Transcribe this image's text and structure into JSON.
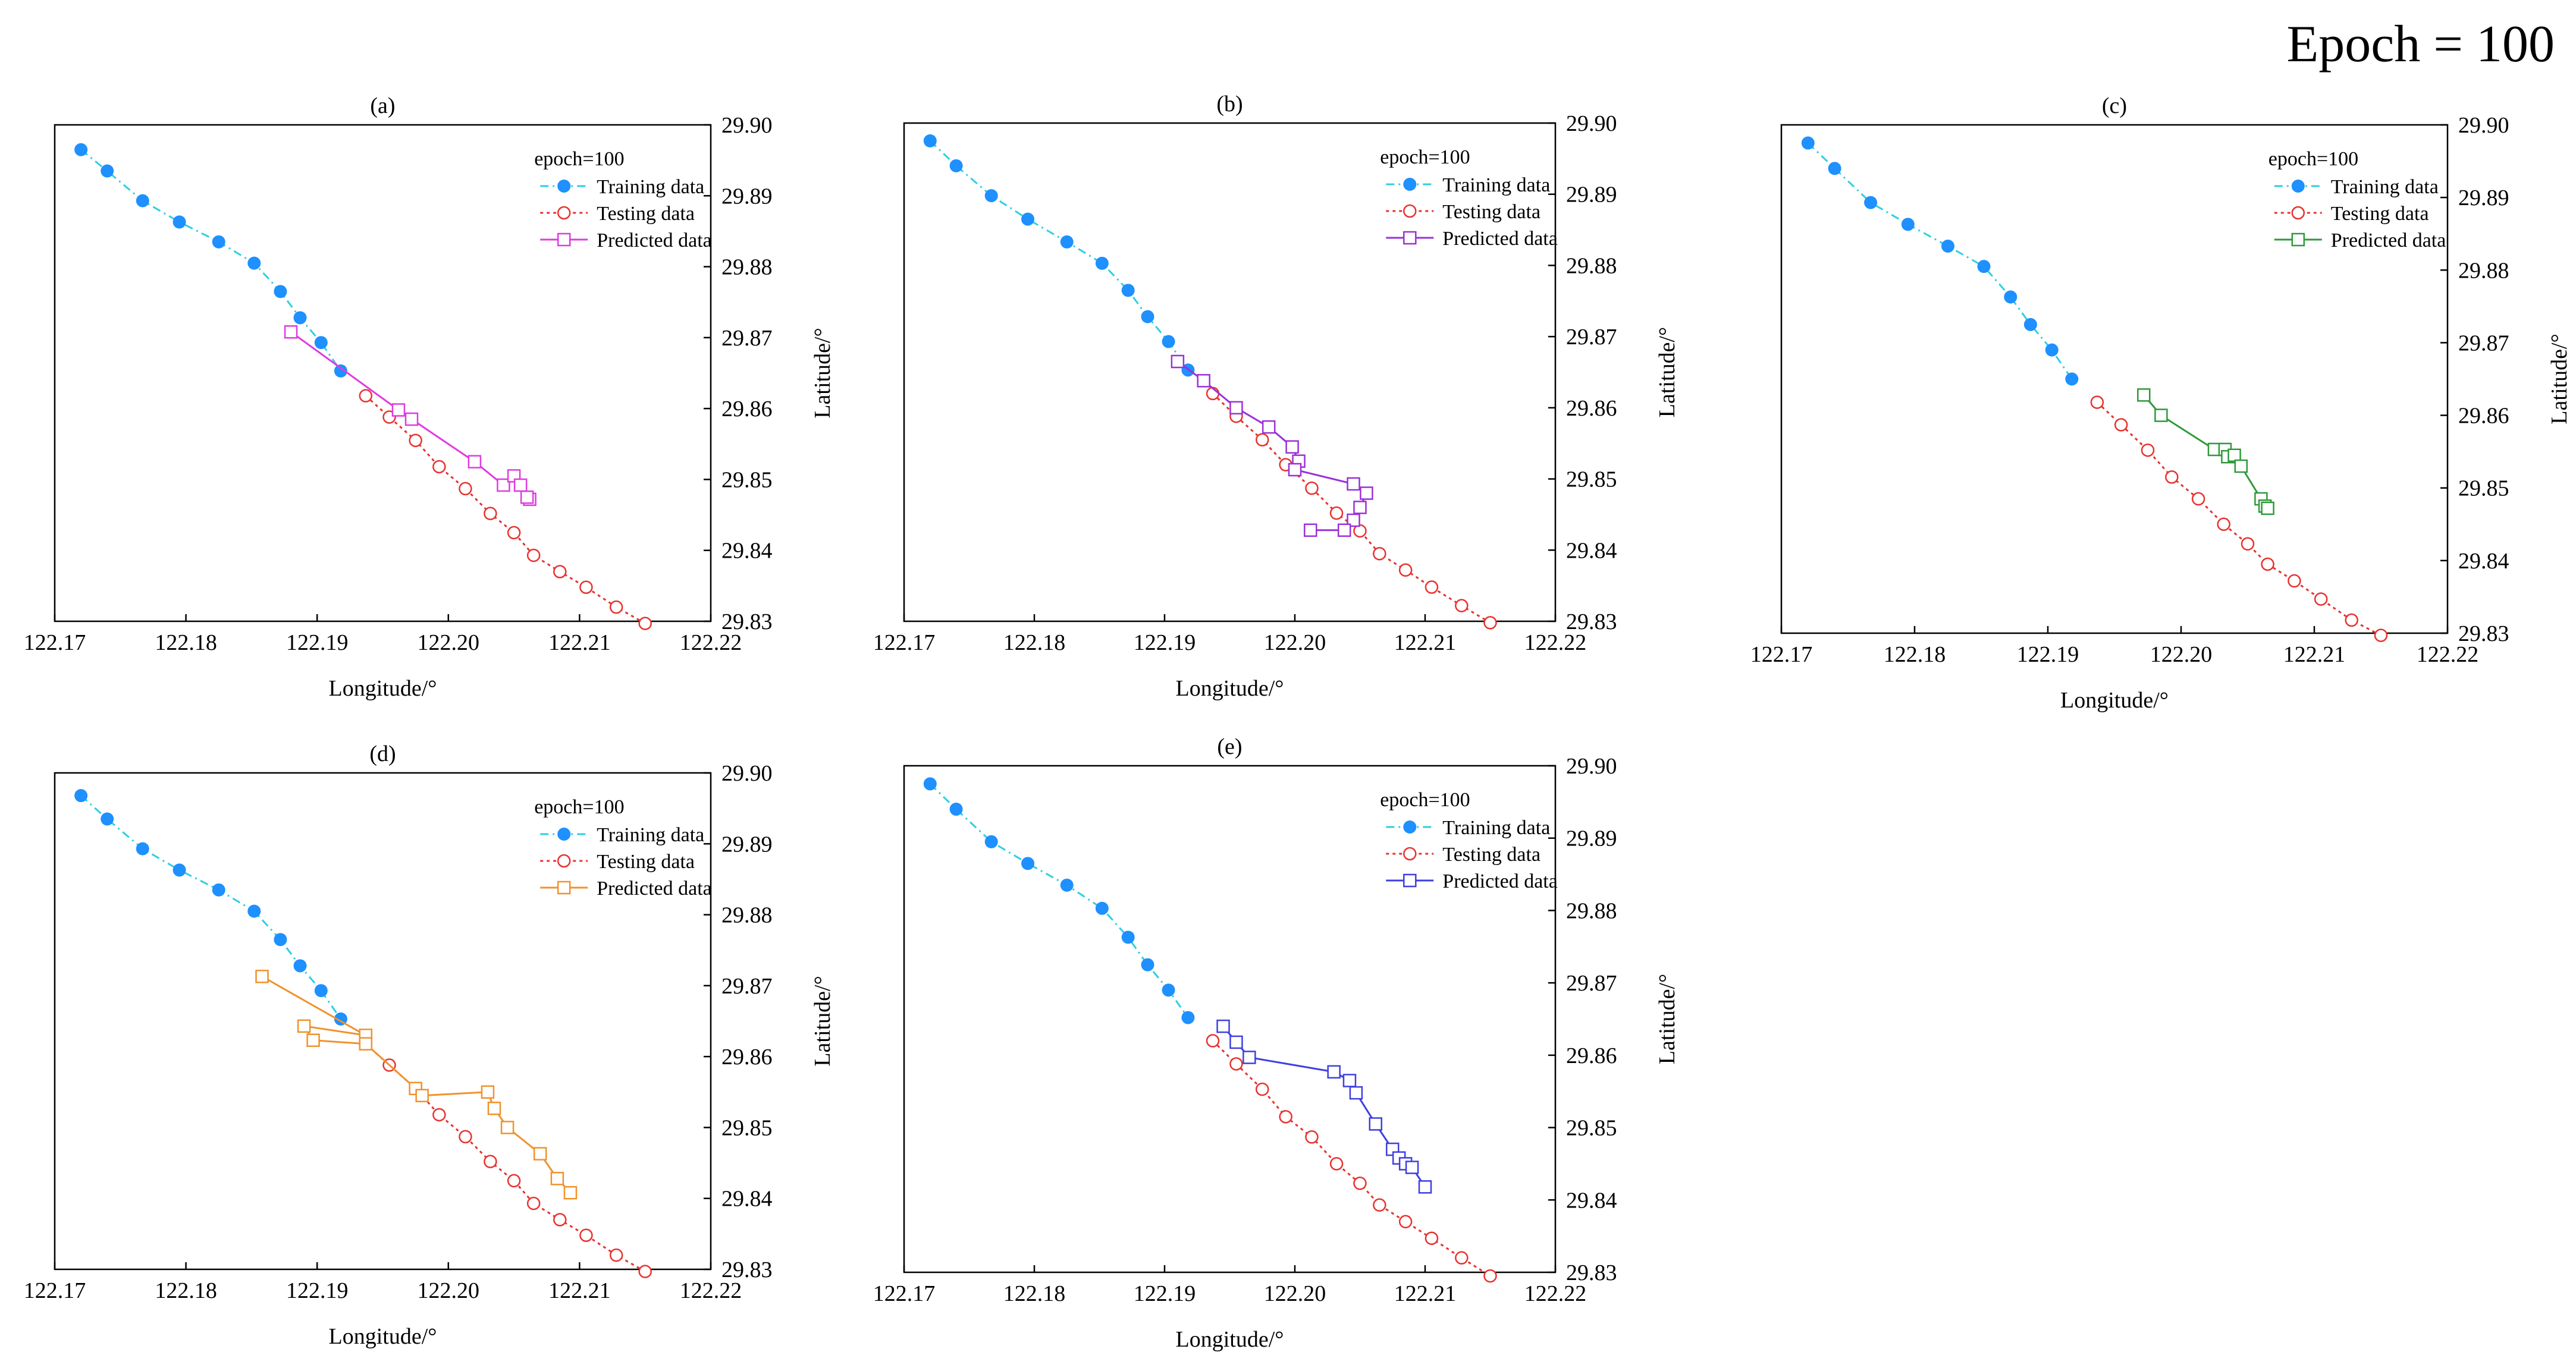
{
  "figure_title": "Epoch = 100",
  "colors": {
    "training": "#1e90ff",
    "training_line": "#2ecfe0",
    "testing": "#e8322f",
    "axis": "#000000"
  },
  "chart_data": [
    {
      "type": "line",
      "panel_label": "(a)",
      "xlabel": "Longitude/°",
      "ylabel": "Latitude/°",
      "xlim": [
        122.17,
        122.22
      ],
      "ylim": [
        29.83,
        29.9
      ],
      "xticks": [
        "122.17",
        "122.18",
        "122.19",
        "122.20",
        "122.21",
        "122.22"
      ],
      "yticks": [
        "29.83",
        "29.84",
        "29.85",
        "29.86",
        "29.87",
        "29.88",
        "29.89",
        "29.90"
      ],
      "legend_title": "epoch=100",
      "legend_position": "top-right",
      "series": [
        {
          "name": "Training data",
          "style": "dash-dot-filled",
          "color": "#1e90ff",
          "x": [
            122.172,
            122.174,
            122.1767,
            122.1795,
            122.1825,
            122.1852,
            122.1872,
            122.1887,
            122.1903,
            122.1918
          ],
          "y": [
            29.8965,
            29.8935,
            29.8893,
            29.8863,
            29.8835,
            29.8805,
            29.8765,
            29.8728,
            29.8693,
            29.8653
          ]
        },
        {
          "name": "Testing data",
          "style": "dotted-open-circle",
          "color": "#e8322f",
          "x": [
            122.1937,
            122.1955,
            122.1975,
            122.1993,
            122.2013,
            122.2032,
            122.205,
            122.2065,
            122.2085,
            122.2105,
            122.2128,
            122.215
          ],
          "y": [
            29.8618,
            29.8588,
            29.8555,
            29.8518,
            29.8487,
            29.8452,
            29.8425,
            29.8393,
            29.837,
            29.8348,
            29.832,
            29.8297
          ]
        },
        {
          "name": "Predicted data",
          "style": "solid-open-square",
          "color": "#e03be0",
          "x": [
            122.188,
            122.1962,
            122.1972,
            122.202,
            122.2042,
            122.205,
            122.2055,
            122.2062,
            122.206
          ],
          "y": [
            29.8708,
            29.8598,
            29.8585,
            29.8525,
            29.8492,
            29.8505,
            29.8492,
            29.8472,
            29.8475
          ]
        }
      ]
    },
    {
      "type": "line",
      "panel_label": "(b)",
      "xlabel": "Longitude/°",
      "ylabel": "Latitude/°",
      "xlim": [
        122.17,
        122.22
      ],
      "ylim": [
        29.83,
        29.9
      ],
      "xticks": [
        "122.17",
        "122.18",
        "122.19",
        "122.20",
        "122.21",
        "122.22"
      ],
      "yticks": [
        "29.83",
        "29.84",
        "29.85",
        "29.86",
        "29.87",
        "29.88",
        "29.89",
        "29.90"
      ],
      "legend_title": "epoch=100",
      "legend_position": "top-right",
      "series": [
        {
          "name": "Training data",
          "style": "dash-dot-filled",
          "color": "#1e90ff",
          "x": [
            122.172,
            122.174,
            122.1767,
            122.1795,
            122.1825,
            122.1852,
            122.1872,
            122.1887,
            122.1903,
            122.1918
          ],
          "y": [
            29.8975,
            29.894,
            29.8898,
            29.8865,
            29.8833,
            29.8803,
            29.8765,
            29.8728,
            29.8693,
            29.8653
          ]
        },
        {
          "name": "Testing data",
          "style": "dotted-open-circle",
          "color": "#e8322f",
          "x": [
            122.1937,
            122.1955,
            122.1975,
            122.1993,
            122.2013,
            122.2032,
            122.205,
            122.2065,
            122.2085,
            122.2105,
            122.2128,
            122.215
          ],
          "y": [
            29.862,
            29.8588,
            29.8555,
            29.852,
            29.8487,
            29.8452,
            29.8427,
            29.8395,
            29.8372,
            29.8348,
            29.8322,
            29.8298
          ]
        },
        {
          "name": "Predicted data",
          "style": "solid-open-square",
          "color": "#9b30d8",
          "x": [
            122.191,
            122.193,
            122.1955,
            122.198,
            122.1998,
            122.2003,
            122.2,
            122.2045,
            122.2055,
            122.205,
            122.2045,
            122.2038,
            122.2012
          ],
          "y": [
            29.8665,
            29.8638,
            29.86,
            29.8573,
            29.8545,
            29.8525,
            29.8513,
            29.8493,
            29.848,
            29.846,
            29.8442,
            29.8428,
            29.8428
          ]
        }
      ]
    },
    {
      "type": "line",
      "panel_label": "(c)",
      "xlabel": "Longitude/°",
      "ylabel": "Latitude/°",
      "xlim": [
        122.17,
        122.22
      ],
      "ylim": [
        29.83,
        29.9
      ],
      "xticks": [
        "122.17",
        "122.18",
        "122.19",
        "122.20",
        "122.21",
        "122.22"
      ],
      "yticks": [
        "29.83",
        "29.84",
        "29.85",
        "29.86",
        "29.87",
        "29.88",
        "29.89",
        "29.90"
      ],
      "legend_title": "epoch=100",
      "legend_position": "top-right",
      "series": [
        {
          "name": "Training data",
          "style": "dash-dot-filled",
          "color": "#1e90ff",
          "x": [
            122.172,
            122.174,
            122.1767,
            122.1795,
            122.1825,
            122.1852,
            122.1872,
            122.1887,
            122.1903,
            122.1918
          ],
          "y": [
            29.8975,
            29.894,
            29.8893,
            29.8863,
            29.8833,
            29.8805,
            29.8763,
            29.8725,
            29.869,
            29.865
          ]
        },
        {
          "name": "Testing data",
          "style": "dotted-open-circle",
          "color": "#e8322f",
          "x": [
            122.1937,
            122.1955,
            122.1975,
            122.1993,
            122.2013,
            122.2032,
            122.205,
            122.2065,
            122.2085,
            122.2105,
            122.2128,
            122.215
          ],
          "y": [
            29.8618,
            29.8587,
            29.8552,
            29.8515,
            29.8485,
            29.845,
            29.8423,
            29.8395,
            29.8372,
            29.8347,
            29.8318,
            29.8297
          ]
        },
        {
          "name": "Predicted data",
          "style": "solid-open-square",
          "color": "#2e9a3a",
          "x": [
            122.1972,
            122.1985,
            122.2025,
            122.2033,
            122.2035,
            122.204,
            122.2045,
            122.206,
            122.2063,
            122.2065
          ],
          "y": [
            29.8628,
            29.86,
            29.8553,
            29.8553,
            29.8543,
            29.8545,
            29.853,
            29.8485,
            29.8475,
            29.8472
          ]
        }
      ]
    },
    {
      "type": "line",
      "panel_label": "(d)",
      "xlabel": "Longitude/°",
      "ylabel": "Latitude/°",
      "xlim": [
        122.17,
        122.22
      ],
      "ylim": [
        29.83,
        29.9
      ],
      "xticks": [
        "122.17",
        "122.18",
        "122.19",
        "122.20",
        "122.21",
        "122.22"
      ],
      "yticks": [
        "29.83",
        "29.84",
        "29.85",
        "29.86",
        "29.87",
        "29.88",
        "29.89",
        "29.90"
      ],
      "legend_title": "epoch=100",
      "legend_position": "top-right",
      "series": [
        {
          "name": "Training data",
          "style": "dash-dot-filled",
          "color": "#1e90ff",
          "x": [
            122.172,
            122.174,
            122.1767,
            122.1795,
            122.1825,
            122.1852,
            122.1872,
            122.1887,
            122.1903,
            122.1918
          ],
          "y": [
            29.8968,
            29.8935,
            29.8893,
            29.8863,
            29.8835,
            29.8805,
            29.8765,
            29.8728,
            29.8693,
            29.8653
          ]
        },
        {
          "name": "Testing data",
          "style": "dotted-open-circle",
          "color": "#e8322f",
          "x": [
            122.1937,
            122.1955,
            122.1975,
            122.1993,
            122.2013,
            122.2032,
            122.205,
            122.2065,
            122.2085,
            122.2105,
            122.2128,
            122.215
          ],
          "y": [
            29.8618,
            29.8588,
            29.8555,
            29.8518,
            29.8487,
            29.8452,
            29.8425,
            29.8393,
            29.837,
            29.8348,
            29.832,
            29.8297
          ]
        },
        {
          "name": "Predicted data",
          "style": "solid-open-square",
          "color": "#f0922b",
          "x": [
            122.1858,
            122.1937,
            122.189,
            122.1897,
            122.1937,
            122.1975,
            122.198,
            122.203,
            122.2035,
            122.2045,
            122.207,
            122.2083,
            122.2093
          ],
          "y": [
            29.8713,
            29.863,
            29.8643,
            29.8623,
            29.8618,
            29.8555,
            29.8545,
            29.855,
            29.8527,
            29.85,
            29.8463,
            29.8428,
            29.8408
          ]
        }
      ]
    },
    {
      "type": "line",
      "panel_label": "(e)",
      "xlabel": "Longitude/°",
      "ylabel": "Latitude/°",
      "xlim": [
        122.17,
        122.22
      ],
      "ylim": [
        29.83,
        29.9
      ],
      "xticks": [
        "122.17",
        "122.18",
        "122.19",
        "122.20",
        "122.21",
        "122.22"
      ],
      "yticks": [
        "29.83",
        "29.84",
        "29.85",
        "29.86",
        "29.87",
        "29.88",
        "29.89",
        "29.90"
      ],
      "legend_title": "epoch=100",
      "legend_position": "top-right",
      "series": [
        {
          "name": "Training data",
          "style": "dash-dot-filled",
          "color": "#1e90ff",
          "x": [
            122.172,
            122.174,
            122.1767,
            122.1795,
            122.1825,
            122.1852,
            122.1872,
            122.1887,
            122.1903,
            122.1918
          ],
          "y": [
            29.8975,
            29.894,
            29.8895,
            29.8865,
            29.8835,
            29.8803,
            29.8763,
            29.8725,
            29.869,
            29.8652
          ]
        },
        {
          "name": "Testing data",
          "style": "dotted-open-circle",
          "color": "#e8322f",
          "x": [
            122.1937,
            122.1955,
            122.1975,
            122.1993,
            122.2013,
            122.2032,
            122.205,
            122.2065,
            122.2085,
            122.2105,
            122.2128,
            122.215
          ],
          "y": [
            29.862,
            29.8588,
            29.8553,
            29.8515,
            29.8487,
            29.845,
            29.8423,
            29.8393,
            29.837,
            29.8347,
            29.832,
            29.8295
          ]
        },
        {
          "name": "Predicted data",
          "style": "solid-open-square",
          "color": "#3f3fe0",
          "x": [
            122.1945,
            122.1955,
            122.1965,
            122.203,
            122.2042,
            122.2047,
            122.2062,
            122.2075,
            122.208,
            122.2085,
            122.209,
            122.21
          ],
          "y": [
            29.864,
            29.8618,
            29.8597,
            29.8577,
            29.8565,
            29.8548,
            29.8505,
            29.847,
            29.8458,
            29.845,
            29.8445,
            29.8418
          ]
        }
      ]
    }
  ]
}
